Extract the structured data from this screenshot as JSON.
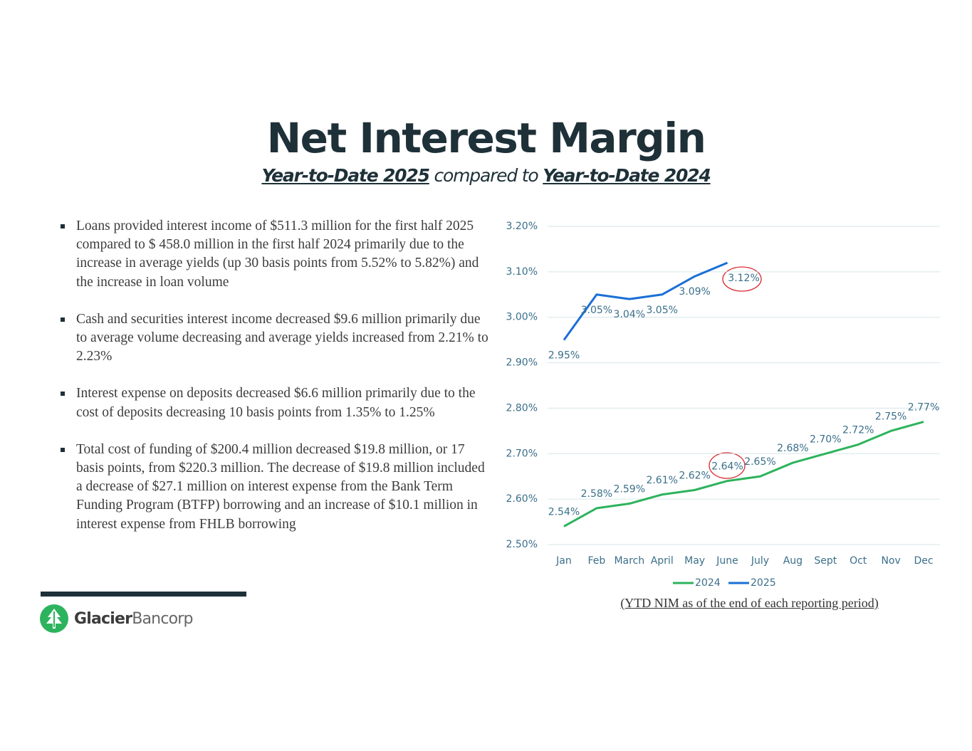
{
  "header": {
    "title": "Net Interest Margin",
    "subtitle": [
      "Year-to-Date 2025",
      " compared to ",
      "Year-to-Date 2024"
    ]
  },
  "bullets": [
    "Loans provided interest income of $511.3 million for the first half 2025 compared to $ 458.0 million in the first half 2024 primarily due to the increase in average yields (up 30 basis points from 5.52% to 5.82%) and the  increase in loan volume",
    "Cash and securities interest income decreased $9.6 million primarily due to average volume decreasing and average yields increased from 2.21% to 2.23%",
    "Interest expense on deposits decreased $6.6 million primarily due to the cost of deposits decreasing 10 basis points from 1.35% to 1.25%",
    "Total cost of funding of $200.4 million decreased $19.8 million, or 17 basis points, from $220.3 million. The decrease of $19.8 million included a decrease of $27.1 million on  interest expense from the Bank Term Funding Program (BTFP) borrowing and an increase of $10.1 million in interest expense from FHLB borrowing"
  ],
  "logo": {
    "name": "Glacier",
    "suffix": "Bancorp"
  },
  "caption": "(YTD NIM as of the end of each reporting period)",
  "chart_data": {
    "type": "line",
    "categories": [
      "Jan",
      "Feb",
      "March",
      "April",
      "May",
      "June",
      "July",
      "Aug",
      "Sept",
      "Oct",
      "Nov",
      "Dec"
    ],
    "series": [
      {
        "name": "2024",
        "color": "#2db35d",
        "values": [
          2.54,
          2.58,
          2.59,
          2.61,
          2.62,
          2.64,
          2.65,
          2.68,
          2.7,
          2.72,
          2.75,
          2.77
        ],
        "value_labels": [
          "2.54%",
          "2.58%",
          "2.59%",
          "2.61%",
          "2.62%",
          "2.64%",
          "2.65%",
          "2.68%",
          "2.70%",
          "2.72%",
          "2.75%",
          "2.77%"
        ]
      },
      {
        "name": "2025",
        "color": "#1a6fd6",
        "values": [
          2.95,
          3.05,
          3.04,
          3.05,
          3.09,
          3.12,
          null,
          null,
          null,
          null,
          null,
          null
        ],
        "value_labels": [
          "2.95%",
          "3.05%",
          "3.04%",
          "3.05%",
          "3.09%",
          "3.12%",
          null,
          null,
          null,
          null,
          null,
          null
        ]
      }
    ],
    "ylim": [
      2.5,
      3.2
    ],
    "yticks": [
      {
        "value": 2.5,
        "label": "2.50%"
      },
      {
        "value": 2.6,
        "label": "2.60%"
      },
      {
        "value": 2.7,
        "label": "2.70%"
      },
      {
        "value": 2.8,
        "label": "2.80%"
      },
      {
        "value": 2.9,
        "label": "2.90%"
      },
      {
        "value": 3.0,
        "label": "3.00%"
      },
      {
        "value": 3.1,
        "label": "3.10%"
      },
      {
        "value": 3.2,
        "label": "3.20%"
      }
    ],
    "grid": true,
    "legend": "bottom"
  }
}
